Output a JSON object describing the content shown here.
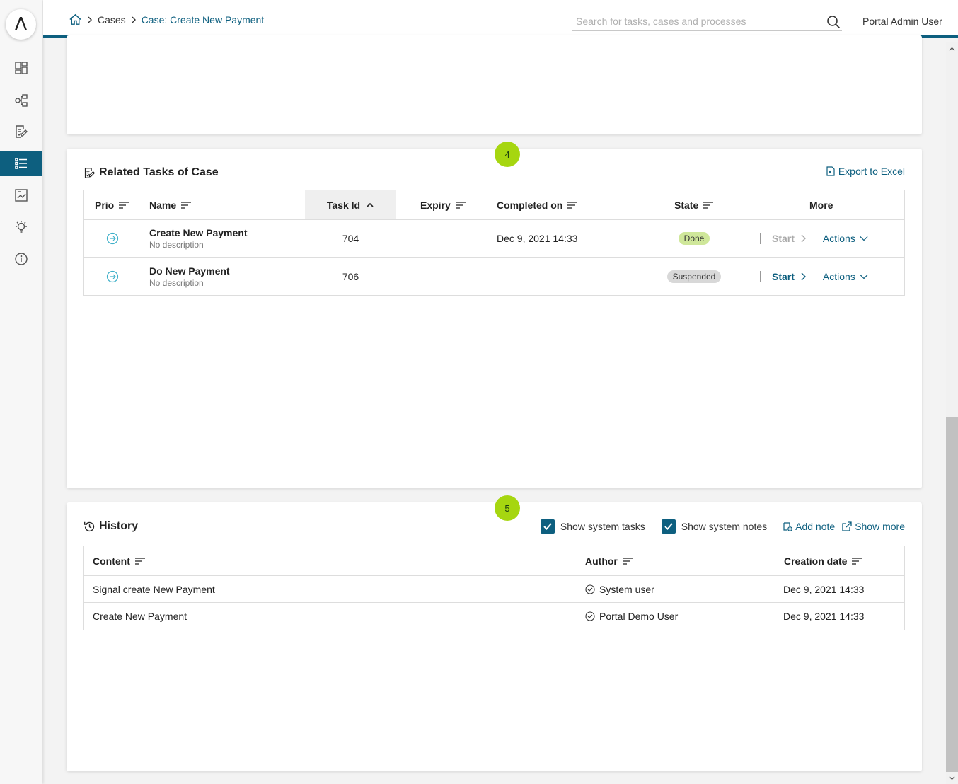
{
  "colors": {
    "accent": "#0d5f7f",
    "step_badge": "#a6d610",
    "done": "#cfe79a",
    "suspended": "#d8d8d8"
  },
  "sidebar": {
    "logo": "Λ",
    "items": [
      {
        "name": "dashboard-icon"
      },
      {
        "name": "processes-icon"
      },
      {
        "name": "tasks-icon"
      },
      {
        "name": "cases-icon",
        "active": true
      },
      {
        "name": "statistics-icon"
      },
      {
        "name": "ideas-icon"
      },
      {
        "name": "info-icon"
      }
    ]
  },
  "header": {
    "breadcrumb": {
      "home_icon": "home-icon",
      "cases": "Cases",
      "current": "Case: Create New Payment"
    },
    "search_placeholder": "Search for tasks, cases and processes",
    "user": "Portal Admin User"
  },
  "tasks_card": {
    "step": "4",
    "title": "Related Tasks of Case",
    "export_label": "Export to Excel",
    "columns": {
      "prio": "Prio",
      "name": "Name",
      "task_id": "Task Id",
      "expiry": "Expiry",
      "completed_on": "Completed on",
      "state": "State",
      "more": "More"
    },
    "rows": [
      {
        "name": "Create New Payment",
        "description": "No description",
        "task_id": "704",
        "expiry": "",
        "completed_on": "Dec 9, 2021 14:33",
        "state": "Done",
        "start": "Start",
        "actions": "Actions"
      },
      {
        "name": "Do New Payment",
        "description": "No description",
        "task_id": "706",
        "expiry": "",
        "completed_on": "",
        "state": "Suspended",
        "start": "Start",
        "actions": "Actions"
      }
    ]
  },
  "history_card": {
    "step": "5",
    "title": "History",
    "show_system_tasks": "Show system tasks",
    "show_system_notes": "Show system notes",
    "add_note": "Add note",
    "show_more": "Show more",
    "columns": {
      "content": "Content",
      "author": "Author",
      "creation_date": "Creation date"
    },
    "rows": [
      {
        "content": "Signal create New Payment",
        "author": "System user",
        "date": "Dec 9, 2021 14:33"
      },
      {
        "content": "Create New Payment",
        "author": "Portal Demo User",
        "date": "Dec 9, 2021 14:33"
      }
    ]
  }
}
